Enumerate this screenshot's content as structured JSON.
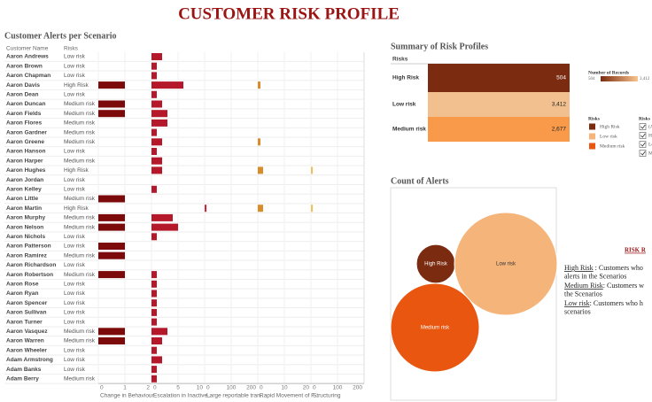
{
  "title": "CUSTOMER RISK PROFILE",
  "chart_data": [
    {
      "type": "bar",
      "orientation": "horizontal",
      "title": "Customer Alerts per Scenario",
      "columns": [
        "Customer Name",
        "Risks"
      ],
      "categories": [
        "Aaron Andrews",
        "Aaron Brown",
        "Aaron Chapman",
        "Aaron Davis",
        "Aaron Dean",
        "Aaron Duncan",
        "Aaron Fields",
        "Aaron Flores",
        "Aaron Gardner",
        "Aaron Greene",
        "Aaron Hanson",
        "Aaron Harper",
        "Aaron Hughes",
        "Aaron Jordan",
        "Aaron Kelley",
        "Aaron Little",
        "Aaron Martin",
        "Aaron Murphy",
        "Aaron Nelson",
        "Aaron Nichols",
        "Aaron Patterson",
        "Aaron Ramirez",
        "Aaron Richardson",
        "Aaron Robertson",
        "Aaron Rose",
        "Aaron Ryan",
        "Aaron Spencer",
        "Aaron Sullivan",
        "Aaron Turner",
        "Aaron Vasquez",
        "Aaron Warren",
        "Aaron Wheeler",
        "Adam Armstrong",
        "Adam Banks",
        "Adam Berry"
      ],
      "risks": [
        "Low risk",
        "Low risk",
        "Low risk",
        "High Risk",
        "Low risk",
        "Medium risk",
        "Medium risk",
        "Medium risk",
        "Medium risk",
        "Medium risk",
        "Low risk",
        "Medium risk",
        "High Risk",
        "Low risk",
        "Low risk",
        "Medium risk",
        "High Risk",
        "Medium risk",
        "Medium risk",
        "Low risk",
        "Low risk",
        "Medium risk",
        "Low risk",
        "Medium risk",
        "Low risk",
        "Low risk",
        "Low risk",
        "Low risk",
        "Low risk",
        "Medium risk",
        "Medium risk",
        "Low risk",
        "Low risk",
        "Low risk",
        "Medium risk"
      ],
      "series": [
        {
          "name": "Change in Behaviour",
          "color": "#7d0a0a",
          "xlim": [
            0,
            2
          ],
          "xticks": [
            0,
            1,
            2
          ],
          "values": [
            null,
            null,
            null,
            1,
            null,
            1,
            1,
            null,
            null,
            null,
            null,
            null,
            null,
            null,
            null,
            1,
            null,
            1,
            1,
            null,
            1,
            1,
            null,
            1,
            null,
            null,
            null,
            null,
            null,
            1,
            1,
            null,
            null,
            null,
            null
          ]
        },
        {
          "name": "Escalation in Inactive..",
          "color": "#b5172b",
          "xlim": [
            0,
            10
          ],
          "xticks": [
            0,
            5,
            10
          ],
          "values": [
            2,
            1,
            1,
            6,
            1,
            2,
            3,
            3,
            1,
            2,
            1,
            2,
            2,
            null,
            1,
            null,
            null,
            4,
            5,
            1,
            null,
            null,
            null,
            1,
            1,
            1,
            1,
            1,
            1,
            3,
            2,
            1,
            2,
            1,
            1
          ]
        },
        {
          "name": "Large reportable tran..",
          "color": "#c8283a",
          "xlim": [
            0,
            200
          ],
          "xticks": [
            0,
            100,
            200
          ],
          "values": [
            null,
            null,
            null,
            null,
            null,
            null,
            null,
            null,
            null,
            null,
            null,
            null,
            null,
            null,
            null,
            null,
            7,
            null,
            null,
            null,
            null,
            null,
            null,
            null,
            null,
            null,
            null,
            null,
            null,
            null,
            null,
            null,
            null,
            null,
            null
          ]
        },
        {
          "name": "Rapid Movement of F..",
          "color": "#d98c2a",
          "xlim": [
            0,
            20
          ],
          "xticks": [
            0,
            10,
            20
          ],
          "values": [
            null,
            null,
            null,
            1,
            null,
            null,
            null,
            null,
            null,
            1,
            null,
            null,
            2,
            null,
            null,
            null,
            2,
            null,
            null,
            null,
            null,
            null,
            null,
            null,
            null,
            null,
            null,
            null,
            null,
            null,
            null,
            null,
            null,
            null,
            null
          ]
        },
        {
          "name": "Structuring",
          "color": "#f0c060",
          "xlim": [
            0,
            200
          ],
          "xticks": [
            0,
            100,
            200
          ],
          "values": [
            null,
            null,
            null,
            null,
            null,
            null,
            null,
            null,
            null,
            null,
            null,
            null,
            7,
            null,
            null,
            null,
            7,
            null,
            null,
            null,
            null,
            null,
            null,
            null,
            null,
            null,
            null,
            null,
            null,
            null,
            null,
            null,
            null,
            null,
            null
          ]
        }
      ]
    },
    {
      "type": "table",
      "title": "Summary of Risk Profiles",
      "header": "Risks",
      "categories": [
        "High Risk",
        "Low risk",
        "Medium risk"
      ],
      "values": [
        504,
        3412,
        2677
      ],
      "value_labels": [
        "504",
        "3,412",
        "2,677"
      ],
      "colors": [
        "#7b2c10",
        "#f2c08e",
        "#f89a4a"
      ],
      "color_legend": {
        "title": "Number of Records",
        "ticks": [
          504,
          {
            "value": 3412,
            "label": "3,412"
          }
        ],
        "colors": [
          "#7b2c10",
          "#f9c48e"
        ]
      },
      "risk_legend": {
        "title": "Risks",
        "colors": [
          "#7b2c10",
          "#f5b47a",
          "#e8560f"
        ]
      }
    },
    {
      "type": "bubble",
      "title": "Count of Alerts",
      "categories": [
        "High Risk",
        "Low risk",
        "Medium risk"
      ],
      "values": [
        48,
        336,
        250
      ],
      "colors": [
        "#7b2c10",
        "#f5b47a",
        "#e8560f"
      ]
    }
  ],
  "filter": {
    "title": "Risks",
    "options": [
      "(All)",
      "High Risk",
      "Low risk",
      "Medium risk"
    ]
  },
  "risk_ranking": {
    "title": "RISK R",
    "items": [
      {
        "term": "High Risk",
        "text": " : Customers who",
        "more": "alerts in the Scenarios"
      },
      {
        "term": "Medium Risk",
        "text": ": Customers w",
        "more": "the Scenarios"
      },
      {
        "term": "Low risk",
        "text": ": Customers who h",
        "more": "scenarios"
      }
    ]
  }
}
